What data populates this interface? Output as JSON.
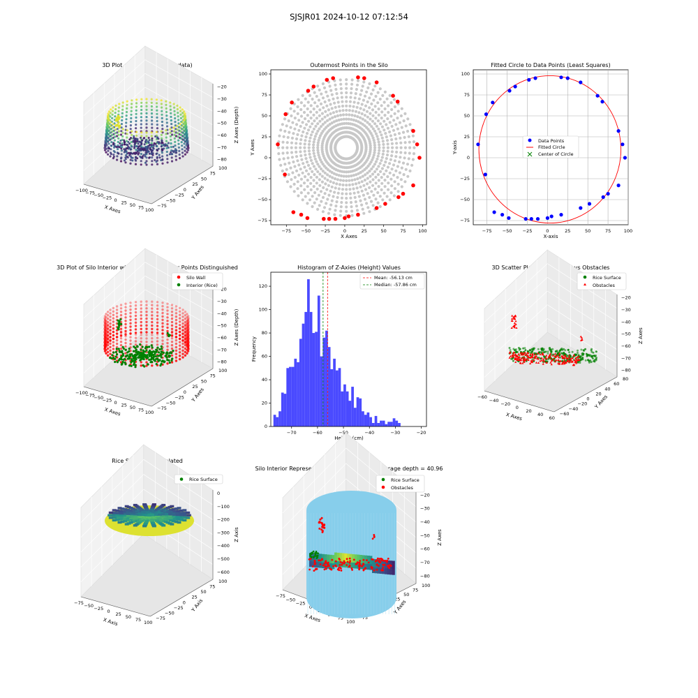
{
  "figure_title": "SJSJR01 2024-10-12 07:12:54",
  "colors": {
    "wall": "#ff0000",
    "interior": "#008000",
    "data_points": "#0000ff",
    "grey": "#c8c8c8",
    "hist": "#4a4aff",
    "cylinder": "#87ceeb",
    "mean": "#ff0000",
    "median": "#008000"
  },
  "chart_data": [
    {
      "id": "silo3d_raw",
      "type": "scatter3d",
      "title": "3D Plot of Silo Interior(row data)",
      "xlabel": "X Axes",
      "ylabel": "Y Axes",
      "zlabel": "Z Axes (Depth)",
      "xticks": [
        "−100",
        "−75",
        "−50",
        "−25",
        "0",
        "25",
        "50",
        "75",
        "100"
      ],
      "yticks": [
        "−75",
        "−50",
        "−25",
        "0",
        "25",
        "50",
        "75",
        "100"
      ],
      "zticks": [
        "−80",
        "−70",
        "−60",
        "−50",
        "−40",
        "−30",
        "−20"
      ],
      "xlim": [
        -100,
        100
      ],
      "ylim": [
        -75,
        100
      ],
      "zlim": [
        -80,
        -20
      ],
      "colormap": "viridis"
    },
    {
      "id": "outermost",
      "type": "scatter",
      "title": "Outermost Points in the Silo",
      "xlabel": "X Axes",
      "ylabel": "Y Axes",
      "xlim": [
        -95,
        105
      ],
      "ylim": [
        -80,
        105
      ],
      "xticks": [
        "−75",
        "−50",
        "−25",
        "0",
        "25",
        "50",
        "75",
        "100"
      ],
      "yticks": [
        "−75",
        "−50",
        "−25",
        "0",
        "25",
        "50",
        "75",
        "100"
      ],
      "background_series": "grey polar grid of all points",
      "outer_points": [
        [
          -86,
          16
        ],
        [
          -76,
          52
        ],
        [
          -68,
          66
        ],
        [
          -47,
          80
        ],
        [
          -40,
          85
        ],
        [
          -23,
          93
        ],
        [
          -15,
          95
        ],
        [
          17,
          96
        ],
        [
          25,
          95
        ],
        [
          41,
          90
        ],
        [
          62,
          74
        ],
        [
          68,
          67
        ],
        [
          88,
          32
        ],
        [
          93,
          16
        ],
        [
          96,
          0
        ],
        [
          -77,
          -20
        ],
        [
          -66,
          -65
        ],
        [
          -56,
          -68
        ],
        [
          -48,
          -72
        ],
        [
          -27,
          -73
        ],
        [
          -20,
          -73
        ],
        [
          -12,
          -73
        ],
        [
          0,
          -72
        ],
        [
          5,
          -70
        ],
        [
          17,
          -68
        ],
        [
          41,
          -60
        ],
        [
          52,
          -55
        ],
        [
          69,
          -47
        ],
        [
          75,
          -43
        ],
        [
          88,
          -33
        ]
      ]
    },
    {
      "id": "fitted_circle",
      "type": "scatter",
      "title": "Fitted Circle to Data Points (Least Squares)",
      "xlabel": "X-axis",
      "ylabel": "Y-axis",
      "xlim": [
        -92,
        100
      ],
      "ylim": [
        -80,
        105
      ],
      "xticks": [
        "−75",
        "−50",
        "−25",
        "0",
        "25",
        "50",
        "75",
        "100"
      ],
      "yticks": [
        "−75",
        "−50",
        "−25",
        "0",
        "25",
        "50",
        "75",
        "100"
      ],
      "grid": true,
      "legend_position": "center",
      "legend": [
        "Data Points",
        "Fitted Circle",
        "Center of Circle"
      ],
      "center": [
        3,
        10
      ],
      "radius": 88,
      "points": [
        [
          -86,
          16
        ],
        [
          -76,
          52
        ],
        [
          -68,
          66
        ],
        [
          -47,
          80
        ],
        [
          -40,
          85
        ],
        [
          -23,
          93
        ],
        [
          -15,
          95
        ],
        [
          17,
          96
        ],
        [
          25,
          95
        ],
        [
          41,
          90
        ],
        [
          62,
          74
        ],
        [
          68,
          67
        ],
        [
          88,
          32
        ],
        [
          93,
          16
        ],
        [
          96,
          0
        ],
        [
          -77,
          -20
        ],
        [
          -66,
          -65
        ],
        [
          -56,
          -68
        ],
        [
          -48,
          -72
        ],
        [
          -27,
          -73
        ],
        [
          -20,
          -73
        ],
        [
          -12,
          -73
        ],
        [
          0,
          -72
        ],
        [
          5,
          -70
        ],
        [
          17,
          -68
        ],
        [
          41,
          -60
        ],
        [
          52,
          -55
        ],
        [
          69,
          -47
        ],
        [
          75,
          -43
        ],
        [
          88,
          -33
        ]
      ]
    },
    {
      "id": "silo3d_wall",
      "type": "scatter3d",
      "title": "3D Plot of Silo Interior with Wall and Interior Points Distinguished",
      "xlabel": "X Axes",
      "ylabel": "Y Axes",
      "zlabel": "Z Axes (Depth)",
      "xticks": [
        "−100",
        "−75",
        "−50",
        "−25",
        "0",
        "25",
        "50",
        "75",
        "100"
      ],
      "yticks": [
        "−75",
        "−50",
        "−25",
        "0",
        "25",
        "50",
        "75",
        "100"
      ],
      "zticks": [
        "−80",
        "−70",
        "−60",
        "−50",
        "−40",
        "−30",
        "−20"
      ],
      "legend": [
        "Silo Wall",
        "Interior (Rice)"
      ],
      "legend_position": "top-right"
    },
    {
      "id": "histogram",
      "type": "bar",
      "title": "Histogram of Z-Axies (Height) Values",
      "xlabel": "Height (cm)",
      "ylabel": "Frequency",
      "xlim": [
        -78,
        -18
      ],
      "ylim": [
        0,
        132
      ],
      "xticks": [
        -70,
        -60,
        -50,
        -40,
        -30,
        -20
      ],
      "yticks": [
        0,
        20,
        40,
        60,
        80,
        100,
        120
      ],
      "bin_start": -77,
      "bin_width": 1,
      "values": [
        10,
        8,
        13,
        29,
        28,
        50,
        51,
        51,
        58,
        55,
        75,
        88,
        98,
        126,
        98,
        80,
        81,
        112,
        60,
        76,
        82,
        68,
        49,
        58,
        48,
        50,
        30,
        36,
        30,
        22,
        34,
        16,
        25,
        24,
        13,
        10,
        12,
        8,
        3,
        9,
        3,
        5,
        5,
        2,
        4,
        4,
        7,
        5,
        3
      ],
      "mean": -56.13,
      "median": -57.86,
      "legend": [
        "Mean: -56.13 cm",
        "Median: -57.86 cm"
      ],
      "legend_position": "top-right"
    },
    {
      "id": "rice_obstacles",
      "type": "scatter3d",
      "title": "3D Scatter Plot: Rice Surface vs Obstacles",
      "xlabel": "X Axes",
      "ylabel": "Y Axes",
      "zlabel": "Z Axes",
      "xticks": [
        "−60",
        "−40",
        "−20",
        "0",
        "20",
        "40",
        "60"
      ],
      "yticks": [
        "−60",
        "−40",
        "−20",
        "0",
        "20",
        "40",
        "60",
        "80"
      ],
      "zticks": [
        "−80",
        "−70",
        "−60",
        "−50",
        "−40",
        "−30",
        "−20"
      ],
      "legend": [
        "Rice Surface",
        "Obstacles"
      ],
      "legend_position": "top-right"
    },
    {
      "id": "rice_interp",
      "type": "surface3d",
      "title": "Rice Surface Interpolated",
      "subtitle": "depth = 40.96",
      "xlabel": "X Axis",
      "ylabel": "Y Axis",
      "zlabel": "Z Axis",
      "xticks": [
        "−75",
        "−50",
        "−25",
        "0",
        "25",
        "50",
        "75",
        "100"
      ],
      "yticks": [
        "−75",
        "−50",
        "−25",
        "0",
        "25",
        "50",
        "75",
        "100"
      ],
      "zticks": [
        "−600",
        "−500",
        "−400",
        "−300",
        "−200",
        "−100",
        "0"
      ],
      "legend": [
        "Rice Surface"
      ],
      "legend_position": "top-right"
    },
    {
      "id": "silo_rep",
      "type": "surface3d",
      "title": "Silo Interior Representation using weighted average depth = 40.96",
      "xlabel": "X Axes",
      "ylabel": "Y Axes",
      "zlabel": "Z Axes",
      "xticks": [
        "−75",
        "−50",
        "−25",
        "0",
        "25",
        "50",
        "75",
        "100"
      ],
      "yticks": [
        "−75",
        "−50",
        "−25",
        "0",
        "25",
        "50",
        "75",
        "100"
      ],
      "zticks": [
        "−80",
        "−70",
        "−60",
        "−50",
        "−40",
        "−30",
        "−20"
      ],
      "legend": [
        "Rice Surface",
        "Obstacles"
      ],
      "legend_position": "top-center"
    }
  ]
}
